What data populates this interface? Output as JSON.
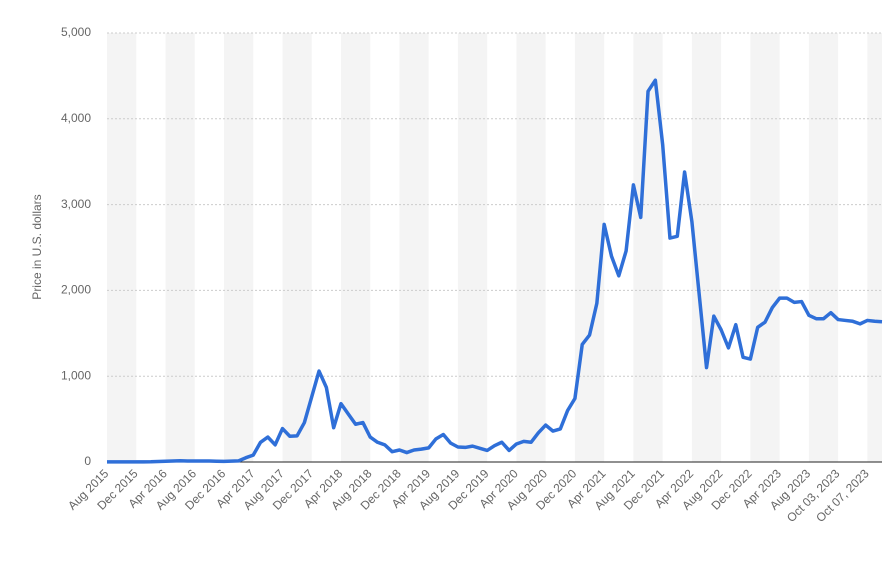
{
  "chart_data": {
    "type": "line",
    "y_label": "Price in U.S. dollars",
    "categories": [
      "Aug 2015",
      null,
      null,
      null,
      "Dec 2015",
      null,
      null,
      null,
      "Apr 2016",
      null,
      null,
      null,
      "Aug 2016",
      null,
      null,
      null,
      "Dec 2016",
      null,
      null,
      null,
      "Apr 2017",
      null,
      null,
      null,
      "Aug 2017",
      null,
      null,
      null,
      "Dec 2017",
      null,
      null,
      null,
      "Apr 2018",
      null,
      null,
      null,
      "Aug 2018",
      null,
      null,
      null,
      "Dec 2018",
      null,
      null,
      null,
      "Apr 2019",
      null,
      null,
      null,
      "Aug 2019",
      null,
      null,
      null,
      "Dec 2019",
      null,
      null,
      null,
      "Apr 2020",
      null,
      null,
      null,
      "Aug 2020",
      null,
      null,
      null,
      "Dec 2020",
      null,
      null,
      null,
      "Apr 2021",
      null,
      null,
      null,
      "Aug 2021",
      null,
      null,
      null,
      "Dec 2021",
      null,
      null,
      null,
      "Apr 2022",
      null,
      null,
      null,
      "Aug 2022",
      null,
      null,
      null,
      "Dec 2022",
      null,
      null,
      null,
      "Apr 2023",
      null,
      null,
      null,
      "Aug 2023",
      null,
      null,
      null,
      "Oct 03, 2023",
      null,
      null,
      null,
      "Oct 07, 2023",
      null,
      null
    ],
    "series": [
      {
        "color": "#2f6fd8",
        "values": [
          1,
          1,
          1,
          1,
          1,
          2,
          3,
          6,
          9,
          12,
          14,
          12,
          11,
          12,
          11,
          9,
          8,
          10,
          13,
          50,
          80,
          230,
          290,
          200,
          390,
          300,
          305,
          460,
          760,
          1060,
          870,
          400,
          680,
          560,
          440,
          460,
          290,
          230,
          200,
          120,
          140,
          110,
          140,
          150,
          165,
          270,
          320,
          220,
          175,
          170,
          185,
          160,
          135,
          190,
          230,
          135,
          210,
          240,
          230,
          340,
          430,
          360,
          385,
          600,
          740,
          1370,
          1480,
          1850,
          2770,
          2400,
          2170,
          2460,
          3230,
          2850,
          4320,
          4450,
          3700,
          2610,
          2630,
          3380,
          2800,
          1950,
          1100,
          1700,
          1540,
          1330,
          1600,
          1220,
          1200,
          1570,
          1630,
          1800,
          1910,
          1910,
          1860,
          1870,
          1710,
          1670,
          1670,
          1740,
          1660,
          1650,
          1640,
          1610,
          1650,
          1640,
          1635
        ]
      }
    ],
    "ylim": [
      0,
      5000
    ],
    "yticks": [
      0,
      {
        "value": 1000,
        "label": "1,000"
      },
      {
        "value": 2000,
        "label": "2,000"
      },
      {
        "value": 3000,
        "label": "3,000"
      },
      {
        "value": 4000,
        "label": "4,000"
      },
      {
        "value": 5000,
        "label": "5,000"
      }
    ],
    "grid": true
  }
}
